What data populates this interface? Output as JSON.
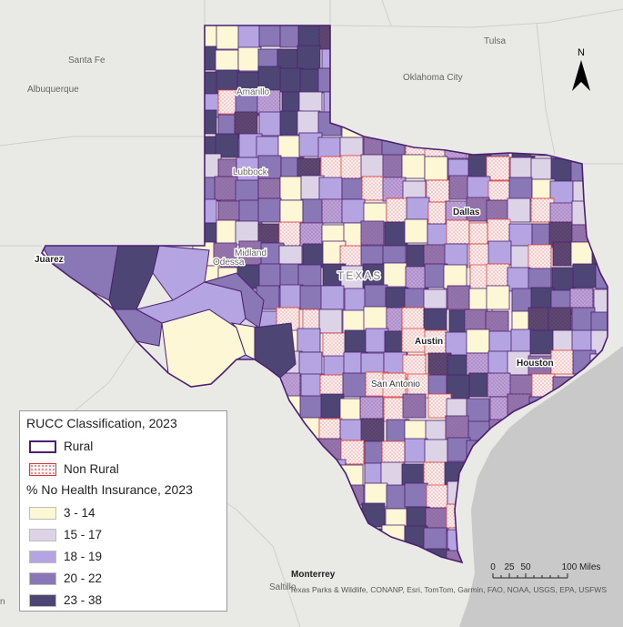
{
  "map": {
    "state_label": "TEXAS",
    "cities": {
      "santa_fe": "Santa Fe",
      "albuquerque": "Albuquerque",
      "tulsa": "Tulsa",
      "oklahoma_city": "Oklahoma City",
      "amarillo": "Amarillo",
      "lubbock": "Lubbock",
      "midland": "Midland",
      "odessa": "Odessa",
      "juarez": "Juarez",
      "dallas": "Dallas",
      "austin": "Austin",
      "houston": "Houston",
      "san_antonio": "San Antonio",
      "monterrey": "Monterrey",
      "saltillo": "Saltillo",
      "partial_left": "n"
    },
    "colors": {
      "background": "#e9e9e6",
      "water": "#c9c9c9",
      "rural_outline": "#4b2070",
      "nonrural_outline": "#d63a3a",
      "class_1": "#fdf7d6",
      "class_2": "#dcd3e6",
      "class_3": "#b4a4e2",
      "class_4": "#8a78b6",
      "class_5": "#4d4675"
    }
  },
  "north_arrow": {
    "label": "N",
    "icon": "north-arrow-icon"
  },
  "scale_bar": {
    "ticks": [
      "0",
      "25",
      "50",
      "100 Miles"
    ]
  },
  "attribution": "Texas Parks & Wildlife, CONANP, Esri, TomTom, Garmin, FAO, NOAA, USGS, EPA, USFWS",
  "legend": {
    "title1": "RUCC Classification, 2023",
    "rural": "Rural",
    "non_rural": "Non Rural",
    "title2": "% No Health Insurance, 2023",
    "classes": [
      {
        "label": "3 - 14",
        "color": "#fdf7d6"
      },
      {
        "label": "15 - 17",
        "color": "#dcd3e6"
      },
      {
        "label": "18 - 19",
        "color": "#b4a4e2"
      },
      {
        "label": "20 - 22",
        "color": "#8a78b6"
      },
      {
        "label": "23 - 38",
        "color": "#4d4675"
      }
    ]
  }
}
